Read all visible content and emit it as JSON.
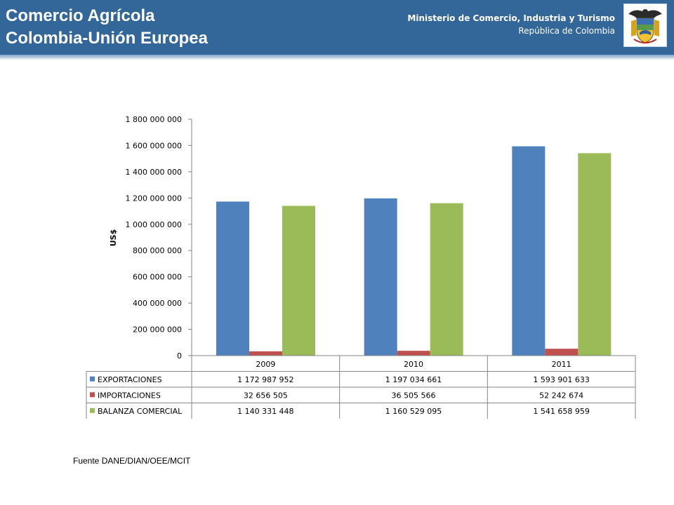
{
  "header": {
    "title_line1": "Comercio Agrícola",
    "title_line2": "Colombia-Unión Europea",
    "ministry": "Ministerio de Comercio, Industria y Turismo",
    "country": "República de Colombia",
    "logo": "coat-of-arms-of-colombia",
    "colors": {
      "header_bg": "#336699",
      "text": "#ffffff"
    }
  },
  "chart_data": {
    "type": "bar",
    "categories": [
      "2009",
      "2010",
      "2011"
    ],
    "ylabel": "US$",
    "ylim": [
      0,
      1800000000
    ],
    "yticks": [
      "0",
      "200 000 000",
      "400 000 000",
      "600 000 000",
      "800 000 000",
      "1 000 000 000",
      "1 200 000 000",
      "1 400 000 000",
      "1 600 000 000",
      "1 800 000 000"
    ],
    "grid": false,
    "legend_placement": "data-table",
    "series": [
      {
        "name": "EXPORTACIONES",
        "color": "#4f81bd",
        "values": [
          1172987952,
          1197034661,
          1593901633
        ],
        "labels": [
          "1 172 987 952",
          "1 197 034 661",
          "1 593 901 633"
        ]
      },
      {
        "name": "IMPORTACIONES",
        "color": "#c0504d",
        "values": [
          32656505,
          36505566,
          52242674
        ],
        "labels": [
          "32 656 505",
          "36 505 566",
          "52 242 674"
        ]
      },
      {
        "name": "BALANZA COMERCIAL",
        "color": "#9bbb59",
        "values": [
          1140331448,
          1160529095,
          1541658959
        ],
        "labels": [
          "1 140 331 448",
          "1 160 529 095",
          "1 541 658 959"
        ]
      }
    ]
  },
  "footer": {
    "source": "Fuente DANE/DIAN/OEE/MCIT"
  }
}
